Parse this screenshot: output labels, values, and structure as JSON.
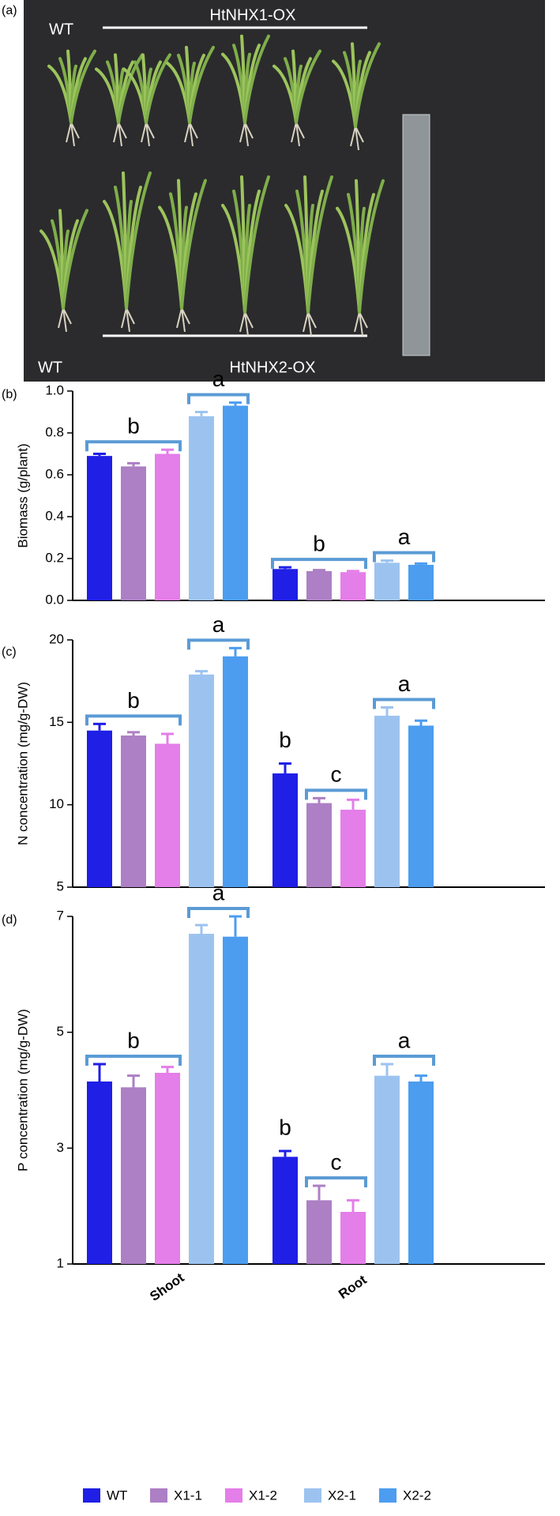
{
  "photo": {
    "panel_label": "(a)",
    "labels": [
      "WT",
      "HtNHX1-OX",
      "WT",
      "HtNHX2-OX"
    ]
  },
  "chart_data": [
    {
      "type": "bar",
      "panel_label": "(b)",
      "ylabel": "Biomass (g/plant)",
      "ylim": [
        0,
        1.0
      ],
      "yticks": [
        {
          "value": 0,
          "label": "0.0"
        },
        0.2,
        0.4,
        0.6,
        0.8,
        {
          "value": 1.0,
          "label": "1.0"
        }
      ],
      "series": [
        {
          "color": "#1f1fe6",
          "values": [
            0.69,
            0.15
          ],
          "errors": [
            0.01,
            0.008
          ]
        },
        {
          "color": "#ad7fc4",
          "values": [
            0.64,
            0.14
          ],
          "errors": [
            0.015,
            0.005
          ]
        },
        {
          "color": "#e47ee8",
          "values": [
            0.7,
            0.135
          ],
          "errors": [
            0.02,
            0.005
          ]
        },
        {
          "color": "#9cc3f0",
          "values": [
            0.88,
            0.18
          ],
          "errors": [
            0.02,
            0.01
          ]
        },
        {
          "color": "#4c9df0",
          "values": [
            0.93,
            0.17
          ],
          "errors": [
            0.015,
            0.006
          ]
        }
      ],
      "annotations": [
        "b",
        "a",
        "b",
        "a"
      ]
    },
    {
      "type": "bar",
      "panel_label": "(c)",
      "ylabel": "N concentration (mg/g-DW)",
      "ylim": [
        5,
        20
      ],
      "yticks": [
        5,
        10,
        15,
        20
      ],
      "series": [
        {
          "color": "#1f1fe6",
          "values": [
            14.5,
            11.9
          ],
          "errors": [
            0.4,
            0.6
          ]
        },
        {
          "color": "#ad7fc4",
          "values": [
            14.2,
            10.1
          ],
          "errors": [
            0.2,
            0.3
          ]
        },
        {
          "color": "#e47ee8",
          "values": [
            13.7,
            9.7
          ],
          "errors": [
            0.6,
            0.6
          ]
        },
        {
          "color": "#9cc3f0",
          "values": [
            17.9,
            15.4
          ],
          "errors": [
            0.2,
            0.5
          ]
        },
        {
          "color": "#4c9df0",
          "values": [
            19.0,
            14.8
          ],
          "errors": [
            0.5,
            0.3
          ]
        }
      ],
      "annotations": [
        "b",
        "a",
        "b",
        "c",
        "a"
      ]
    },
    {
      "type": "bar",
      "panel_label": "(d)",
      "ylabel": "P concentration (mg/g-DW)",
      "ylim": [
        1,
        7
      ],
      "yticks": [
        1,
        3,
        5,
        7
      ],
      "categories": [
        "Shoot",
        "Root"
      ],
      "series": [
        {
          "name": "WT",
          "color": "#1f1fe6",
          "values": [
            4.15,
            2.85
          ],
          "errors": [
            0.3,
            0.1
          ]
        },
        {
          "name": "X1-1",
          "color": "#ad7fc4",
          "values": [
            4.05,
            2.1
          ],
          "errors": [
            0.2,
            0.25
          ]
        },
        {
          "name": "X1-2",
          "color": "#e47ee8",
          "values": [
            4.3,
            1.9
          ],
          "errors": [
            0.1,
            0.2
          ]
        },
        {
          "name": "X2-1",
          "color": "#9cc3f0",
          "values": [
            6.7,
            4.25
          ],
          "errors": [
            0.15,
            0.2
          ]
        },
        {
          "name": "X2-2",
          "color": "#4c9df0",
          "values": [
            6.65,
            4.15
          ],
          "errors": [
            0.35,
            0.1
          ]
        }
      ],
      "annotations": [
        "b",
        "a",
        "b",
        "c",
        "a"
      ]
    }
  ]
}
